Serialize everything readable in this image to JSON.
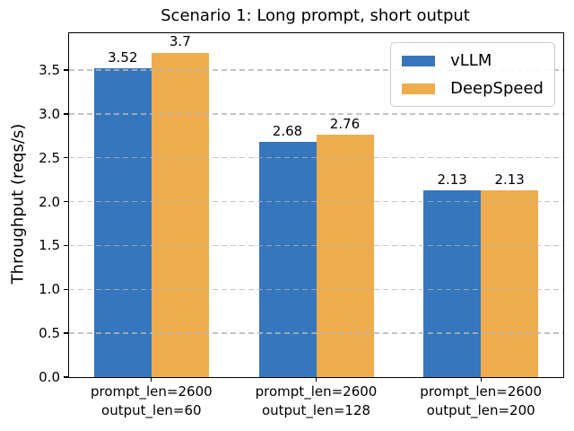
{
  "chart_data": {
    "type": "bar",
    "title": "Scenario 1: Long prompt, short output",
    "ylabel": "Throughput (reqs/s)",
    "xlabel": "",
    "categories": [
      "prompt_len=2600\noutput_len=60",
      "prompt_len=2600\noutput_len=128",
      "prompt_len=2600\noutput_len=200"
    ],
    "series": [
      {
        "name": "vLLM",
        "color": "#3576bc",
        "values": [
          3.52,
          2.68,
          2.13
        ]
      },
      {
        "name": "DeepSpeed",
        "color": "#eeac4d",
        "values": [
          3.7,
          2.76,
          2.13
        ]
      }
    ],
    "bar_value_labels": {
      "vLLM": [
        "3.52",
        "2.68",
        "2.13"
      ],
      "DeepSpeed": [
        "3.7",
        "2.76",
        "2.13"
      ]
    },
    "ylim": [
      0,
      3.92
    ],
    "yticks": [
      0.0,
      0.5,
      1.0,
      1.5,
      2.0,
      2.5,
      3.0,
      3.5
    ],
    "ytick_labels": [
      "0.0",
      "0.5",
      "1.0",
      "1.5",
      "2.0",
      "2.5",
      "3.0",
      "3.5"
    ],
    "grid": {
      "axis": "y",
      "style": "dashed",
      "color": "#b5b5b5",
      "drawn_over_bars": true
    },
    "legend": {
      "position": "upper-right"
    }
  },
  "colors": {
    "background": "#ffffff",
    "spine": "#000000",
    "text": "#000000",
    "legend_border": "#cccccc"
  }
}
